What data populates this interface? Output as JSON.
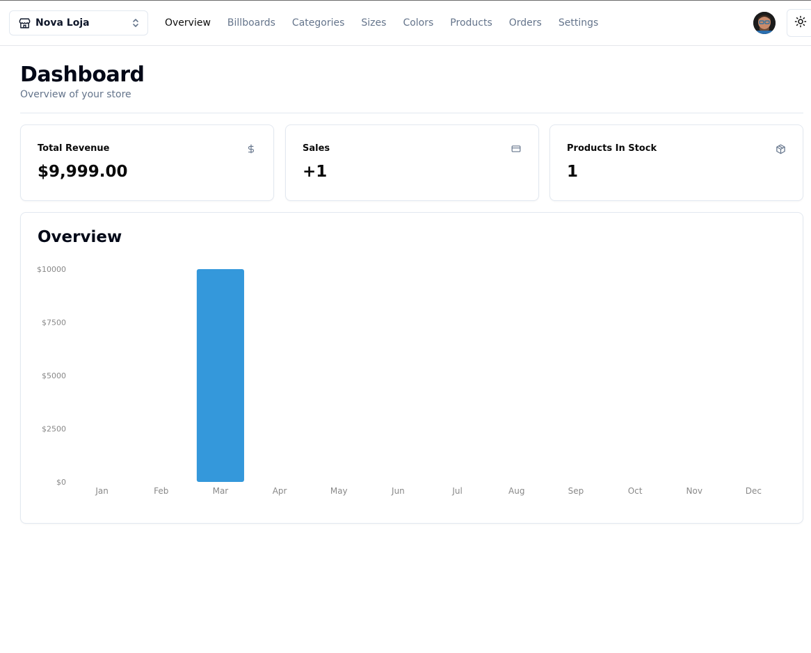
{
  "navbar": {
    "store_name": "Nova Loja",
    "links": [
      {
        "label": "Overview",
        "active": true
      },
      {
        "label": "Billboards",
        "active": false
      },
      {
        "label": "Categories",
        "active": false
      },
      {
        "label": "Sizes",
        "active": false
      },
      {
        "label": "Colors",
        "active": false
      },
      {
        "label": "Products",
        "active": false
      },
      {
        "label": "Orders",
        "active": false
      },
      {
        "label": "Settings",
        "active": false
      }
    ],
    "icons": {
      "store": "store-icon",
      "switch": "chevrons-up-down-icon",
      "theme": "sun-icon"
    }
  },
  "page": {
    "title": "Dashboard",
    "subtitle": "Overview of your store"
  },
  "stats": [
    {
      "title": "Total Revenue",
      "value": "$9,999.00",
      "icon": "dollar-sign-icon"
    },
    {
      "title": "Sales",
      "value": "+1",
      "icon": "credit-card-icon"
    },
    {
      "title": "Products In Stock",
      "value": "1",
      "icon": "package-icon"
    }
  ],
  "overview": {
    "title": "Overview"
  },
  "colors": {
    "bar": "#3498db",
    "axis_text": "#888888"
  },
  "chart_data": {
    "type": "bar",
    "categories": [
      "Jan",
      "Feb",
      "Mar",
      "Apr",
      "May",
      "Jun",
      "Jul",
      "Aug",
      "Sep",
      "Oct",
      "Nov",
      "Dec"
    ],
    "values": [
      0,
      0,
      9999,
      0,
      0,
      0,
      0,
      0,
      0,
      0,
      0,
      0
    ],
    "title": "Overview",
    "xlabel": "",
    "ylabel": "",
    "ylim": [
      0,
      10000
    ],
    "yticks": [
      0,
      2500,
      5000,
      7500,
      10000
    ],
    "ytick_labels": [
      "$0",
      "$2500",
      "$5000",
      "$7500",
      "$10000"
    ],
    "grid": false,
    "legend": "none"
  }
}
